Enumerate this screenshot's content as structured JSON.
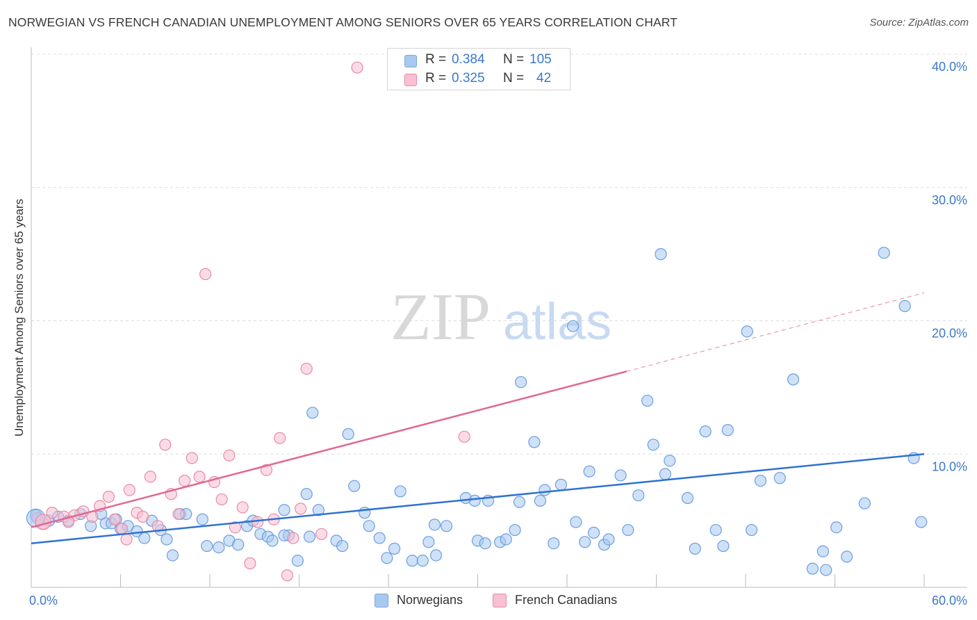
{
  "title": "NORWEGIAN VS FRENCH CANADIAN UNEMPLOYMENT AMONG SENIORS OVER 65 YEARS CORRELATION CHART",
  "source": "Source: ZipAtlas.com",
  "watermark": {
    "zip": "ZIP",
    "atlas": "atlas"
  },
  "stats": [
    {
      "r_label": "R =",
      "r_value": "0.384",
      "n_label": "N =",
      "n_value": "105",
      "color": "#a8c8f0",
      "border": "#7aa6dd"
    },
    {
      "r_label": "R =",
      "r_value": "0.325",
      "n_label": "N =",
      "n_value": "42",
      "color": "#f8c0d0",
      "border": "#e88aa8"
    }
  ],
  "legend": [
    {
      "label": "Norwegians",
      "color": "#a8c8f0",
      "border": "#7aa6dd"
    },
    {
      "label": "French Canadians",
      "color": "#f8c0d0",
      "border": "#e88aa8"
    }
  ],
  "chart_data": {
    "type": "scatter",
    "xlabel": "",
    "ylabel": "Unemployment Among Seniors over 65 years",
    "xlim": [
      0,
      60
    ],
    "ylim": [
      0,
      40
    ],
    "x_tick_labels": [
      "0.0%",
      "60.0%"
    ],
    "y_tick_labels": [
      "10.0%",
      "20.0%",
      "30.0%",
      "40.0%"
    ],
    "y_ticks": [
      10,
      20,
      30,
      40
    ],
    "grid": true,
    "series": [
      {
        "name": "Norwegians",
        "color": "#6a9ee0",
        "fill": "#a8c8f0",
        "line_color": "#2f72d0",
        "trend": {
          "x": [
            0,
            60
          ],
          "y": [
            3.3,
            10.0
          ]
        },
        "points": [
          [
            0.3,
            5.4
          ],
          [
            1.2,
            5.0
          ],
          [
            1.8,
            5.3
          ],
          [
            2.5,
            5.0
          ],
          [
            3.3,
            5.5
          ],
          [
            4.0,
            4.6
          ],
          [
            4.7,
            5.5
          ],
          [
            5.0,
            4.8
          ],
          [
            5.4,
            4.8
          ],
          [
            5.7,
            5.1
          ],
          [
            6.0,
            4.4
          ],
          [
            6.5,
            4.6
          ],
          [
            7.1,
            4.2
          ],
          [
            7.6,
            3.7
          ],
          [
            8.1,
            5.0
          ],
          [
            8.7,
            4.3
          ],
          [
            9.1,
            3.6
          ],
          [
            9.5,
            2.4
          ],
          [
            10.0,
            5.5
          ],
          [
            10.4,
            5.5
          ],
          [
            11.5,
            5.1
          ],
          [
            11.8,
            3.1
          ],
          [
            12.6,
            3.0
          ],
          [
            13.3,
            3.5
          ],
          [
            13.9,
            3.2
          ],
          [
            14.5,
            4.6
          ],
          [
            14.9,
            5.0
          ],
          [
            15.4,
            4.0
          ],
          [
            15.9,
            3.8
          ],
          [
            16.2,
            3.5
          ],
          [
            17.0,
            5.8
          ],
          [
            17.3,
            3.9
          ],
          [
            17.9,
            2.0
          ],
          [
            17.0,
            3.9
          ],
          [
            18.5,
            7.0
          ],
          [
            18.7,
            3.8
          ],
          [
            19.3,
            5.8
          ],
          [
            18.9,
            13.1
          ],
          [
            20.5,
            3.5
          ],
          [
            20.9,
            3.1
          ],
          [
            21.3,
            11.5
          ],
          [
            21.7,
            7.6
          ],
          [
            22.4,
            5.6
          ],
          [
            22.7,
            4.6
          ],
          [
            23.4,
            3.7
          ],
          [
            23.9,
            2.2
          ],
          [
            24.4,
            2.9
          ],
          [
            24.8,
            7.2
          ],
          [
            25.6,
            2.0
          ],
          [
            26.3,
            2.0
          ],
          [
            26.7,
            3.4
          ],
          [
            27.1,
            4.7
          ],
          [
            27.2,
            2.4
          ],
          [
            27.9,
            4.6
          ],
          [
            29.2,
            6.7
          ],
          [
            29.8,
            6.5
          ],
          [
            30.0,
            3.5
          ],
          [
            30.7,
            6.5
          ],
          [
            30.5,
            3.3
          ],
          [
            31.5,
            3.4
          ],
          [
            31.9,
            3.6
          ],
          [
            32.5,
            4.3
          ],
          [
            32.8,
            6.4
          ],
          [
            32.9,
            15.4
          ],
          [
            33.8,
            10.9
          ],
          [
            34.2,
            6.5
          ],
          [
            34.5,
            7.3
          ],
          [
            35.1,
            3.3
          ],
          [
            35.6,
            7.7
          ],
          [
            36.4,
            19.6
          ],
          [
            36.6,
            4.9
          ],
          [
            37.2,
            3.4
          ],
          [
            37.5,
            8.7
          ],
          [
            37.8,
            4.1
          ],
          [
            38.5,
            3.2
          ],
          [
            38.8,
            3.6
          ],
          [
            39.6,
            8.4
          ],
          [
            40.1,
            4.3
          ],
          [
            40.8,
            6.9
          ],
          [
            41.4,
            14.0
          ],
          [
            41.8,
            10.7
          ],
          [
            42.3,
            25.0
          ],
          [
            42.6,
            8.5
          ],
          [
            42.9,
            9.5
          ],
          [
            44.1,
            6.7
          ],
          [
            44.6,
            2.9
          ],
          [
            45.3,
            11.7
          ],
          [
            46.0,
            4.3
          ],
          [
            46.5,
            3.1
          ],
          [
            46.8,
            11.8
          ],
          [
            48.1,
            19.2
          ],
          [
            48.4,
            4.3
          ],
          [
            49.0,
            8.0
          ],
          [
            50.3,
            8.2
          ],
          [
            51.2,
            15.6
          ],
          [
            52.5,
            1.4
          ],
          [
            53.2,
            2.7
          ],
          [
            53.4,
            1.3
          ],
          [
            54.8,
            2.3
          ],
          [
            56.0,
            6.3
          ],
          [
            57.3,
            25.1
          ],
          [
            58.7,
            21.1
          ],
          [
            59.3,
            9.7
          ],
          [
            59.8,
            4.9
          ],
          [
            54.1,
            4.5
          ]
        ]
      },
      {
        "name": "French Canadians",
        "color": "#e88aa8",
        "fill": "#f8c0d0",
        "line_color": "#e06892",
        "trend": {
          "x": [
            0,
            40
          ],
          "y": [
            4.5,
            16.2
          ]
        },
        "trend_ext": {
          "x": [
            40,
            60
          ],
          "y": [
            16.2,
            22.1
          ]
        },
        "points": [
          [
            0.4,
            5.2
          ],
          [
            0.8,
            4.8
          ],
          [
            1.4,
            5.6
          ],
          [
            2.2,
            5.3
          ],
          [
            2.9,
            5.4
          ],
          [
            3.5,
            5.7
          ],
          [
            4.1,
            5.3
          ],
          [
            4.6,
            6.1
          ],
          [
            5.2,
            6.8
          ],
          [
            5.6,
            5.1
          ],
          [
            6.1,
            4.4
          ],
          [
            6.6,
            7.3
          ],
          [
            7.1,
            5.6
          ],
          [
            7.5,
            5.3
          ],
          [
            8.0,
            8.3
          ],
          [
            8.5,
            4.6
          ],
          [
            9.0,
            10.7
          ],
          [
            9.4,
            7.0
          ],
          [
            9.9,
            5.5
          ],
          [
            10.3,
            8.0
          ],
          [
            10.8,
            9.7
          ],
          [
            11.3,
            8.3
          ],
          [
            11.7,
            23.5
          ],
          [
            12.3,
            7.9
          ],
          [
            12.8,
            6.6
          ],
          [
            13.3,
            9.9
          ],
          [
            13.7,
            4.5
          ],
          [
            14.2,
            6.0
          ],
          [
            14.7,
            1.8
          ],
          [
            15.2,
            4.9
          ],
          [
            15.8,
            8.8
          ],
          [
            16.3,
            5.1
          ],
          [
            16.7,
            11.2
          ],
          [
            17.2,
            0.9
          ],
          [
            17.6,
            3.7
          ],
          [
            18.1,
            5.9
          ],
          [
            18.5,
            16.4
          ],
          [
            19.5,
            4.0
          ],
          [
            21.9,
            39.0
          ],
          [
            29.1,
            11.3
          ],
          [
            6.4,
            3.6
          ],
          [
            2.5,
            4.9
          ]
        ]
      }
    ]
  }
}
